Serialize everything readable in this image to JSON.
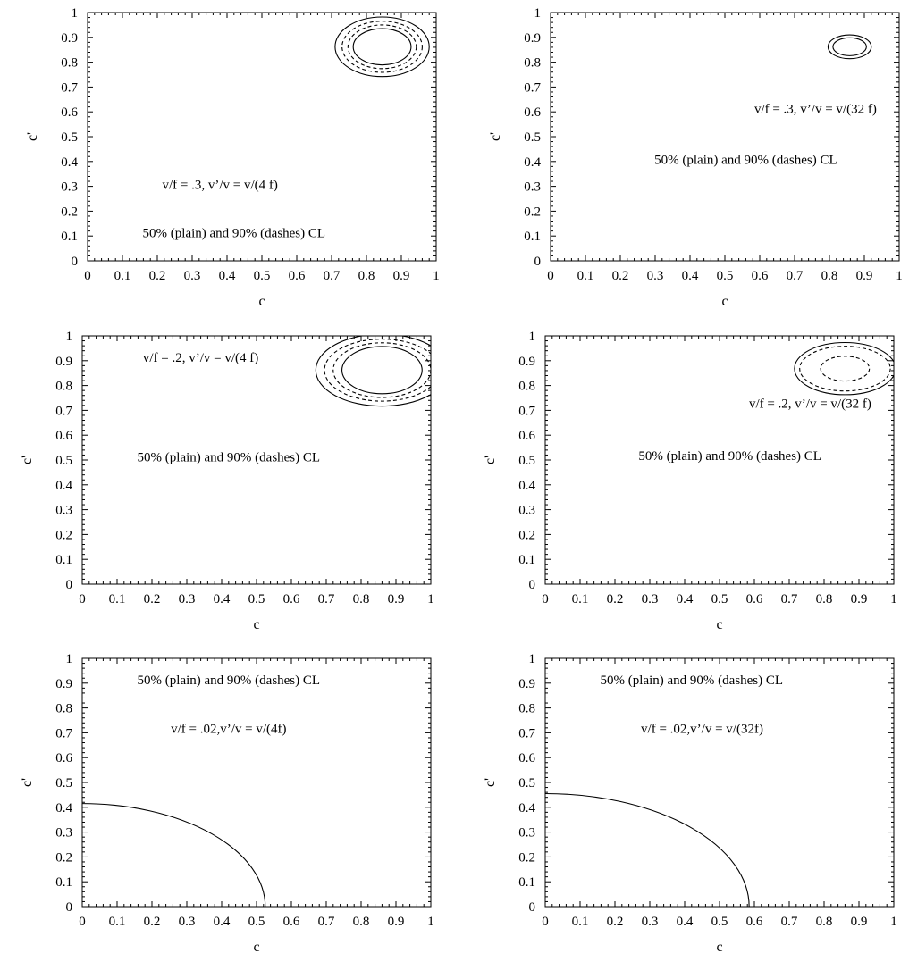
{
  "chart_data": [
    {
      "type": "line",
      "xlabel": "c",
      "ylabel": "c'",
      "xlim": [
        0,
        1
      ],
      "ylim": [
        0,
        1
      ],
      "xticks": [
        "0",
        "0.1",
        "0.2",
        "0.3",
        "0.4",
        "0.5",
        "0.6",
        "0.7",
        "0.8",
        "0.9",
        "1"
      ],
      "yticks": [
        "0",
        "0.1",
        "0.2",
        "0.3",
        "0.4",
        "0.5",
        "0.6",
        "0.7",
        "0.8",
        "0.9",
        "1"
      ],
      "annotations": [
        {
          "text": "v/f = .3, v’/v = v/(4 f)",
          "x": 0.38,
          "y": 0.29
        },
        {
          "text": "50% (plain) and 90% (dashes) CL",
          "x": 0.42,
          "y": 0.095
        }
      ],
      "series": [
        {
          "style": "solid",
          "shape": "ellipse",
          "center": [
            0.845,
            0.862
          ],
          "radii": [
            0.135,
            0.12
          ]
        },
        {
          "style": "dashed",
          "shape": "ellipse",
          "center": [
            0.845,
            0.862
          ],
          "radii": [
            0.115,
            0.103
          ]
        },
        {
          "style": "dashed",
          "shape": "ellipse",
          "center": [
            0.845,
            0.862
          ],
          "radii": [
            0.098,
            0.088
          ]
        },
        {
          "style": "solid",
          "shape": "ellipse",
          "center": [
            0.845,
            0.862
          ],
          "radii": [
            0.083,
            0.073
          ]
        }
      ]
    },
    {
      "type": "line",
      "xlabel": "c",
      "ylabel": "c'",
      "xlim": [
        0,
        1
      ],
      "ylim": [
        0,
        1
      ],
      "xticks": [
        "0",
        "0.1",
        "0.2",
        "0.3",
        "0.4",
        "0.5",
        "0.6",
        "0.7",
        "0.8",
        "0.9",
        "1"
      ],
      "yticks": [
        "0",
        "0.1",
        "0.2",
        "0.3",
        "0.4",
        "0.5",
        "0.6",
        "0.7",
        "0.8",
        "0.9",
        "1"
      ],
      "annotations": [
        {
          "text": "v/f = .3, v’/v = v/(32 f)",
          "x": 0.76,
          "y": 0.595
        },
        {
          "text": "50% (plain) and 90% (dashes) CL",
          "x": 0.56,
          "y": 0.39
        }
      ],
      "series": [
        {
          "style": "solid",
          "shape": "ellipse",
          "center": [
            0.858,
            0.862
          ],
          "radii": [
            0.062,
            0.048
          ]
        },
        {
          "style": "solid",
          "shape": "ellipse",
          "center": [
            0.858,
            0.862
          ],
          "radii": [
            0.048,
            0.036
          ]
        }
      ]
    },
    {
      "type": "line",
      "xlabel": "c",
      "ylabel": "c'",
      "xlim": [
        0,
        1
      ],
      "ylim": [
        0,
        1
      ],
      "xticks": [
        "0",
        "0.1",
        "0.2",
        "0.3",
        "0.4",
        "0.5",
        "0.6",
        "0.7",
        "0.8",
        "0.9",
        "1"
      ],
      "yticks": [
        "0",
        "0.1",
        "0.2",
        "0.3",
        "0.4",
        "0.5",
        "0.6",
        "0.7",
        "0.8",
        "0.9",
        "1"
      ],
      "annotations": [
        {
          "text": "v/f = .2, v’/v = v/(4 f)",
          "x": 0.34,
          "y": 0.895
        },
        {
          "text": "50% (plain) and 90% (dashes) CL",
          "x": 0.42,
          "y": 0.495
        }
      ],
      "series": [
        {
          "style": "solid",
          "shape": "ellipse",
          "center": [
            0.86,
            0.862
          ],
          "radii": [
            0.19,
            0.145
          ]
        },
        {
          "style": "dashed",
          "shape": "ellipse",
          "center": [
            0.86,
            0.862
          ],
          "radii": [
            0.165,
            0.125
          ]
        },
        {
          "style": "dashed",
          "shape": "ellipse",
          "center": [
            0.86,
            0.862
          ],
          "radii": [
            0.14,
            0.11
          ]
        },
        {
          "style": "solid",
          "shape": "ellipse",
          "center": [
            0.86,
            0.862
          ],
          "radii": [
            0.115,
            0.095
          ]
        }
      ]
    },
    {
      "type": "line",
      "xlabel": "c",
      "ylabel": "c'",
      "xlim": [
        0,
        1
      ],
      "ylim": [
        0,
        1
      ],
      "xticks": [
        "0",
        "0.1",
        "0.2",
        "0.3",
        "0.4",
        "0.5",
        "0.6",
        "0.7",
        "0.8",
        "0.9",
        "1"
      ],
      "yticks": [
        "0",
        "0.1",
        "0.2",
        "0.3",
        "0.4",
        "0.5",
        "0.6",
        "0.7",
        "0.8",
        "0.9",
        "1"
      ],
      "annotations": [
        {
          "text": "v/f = .2, v’/v = v/(32 f)",
          "x": 0.76,
          "y": 0.71
        },
        {
          "text": "50% (plain) and 90% (dashes) CL",
          "x": 0.53,
          "y": 0.5
        }
      ],
      "series": [
        {
          "style": "solid",
          "shape": "ellipse",
          "center": [
            0.86,
            0.868
          ],
          "radii": [
            0.145,
            0.105
          ]
        },
        {
          "style": "dashed",
          "shape": "ellipse",
          "center": [
            0.86,
            0.868
          ],
          "radii": [
            0.13,
            0.09
          ]
        },
        {
          "style": "dashed",
          "shape": "ellipse",
          "center": [
            0.86,
            0.868
          ],
          "radii": [
            0.07,
            0.05
          ]
        }
      ]
    },
    {
      "type": "line",
      "xlabel": "c",
      "ylabel": "c'",
      "xlim": [
        0,
        1
      ],
      "ylim": [
        0,
        1
      ],
      "xticks": [
        "0",
        "0.1",
        "0.2",
        "0.3",
        "0.4",
        "0.5",
        "0.6",
        "0.7",
        "0.8",
        "0.9",
        "1"
      ],
      "yticks": [
        "0",
        "0.1",
        "0.2",
        "0.3",
        "0.4",
        "0.5",
        "0.6",
        "0.7",
        "0.8",
        "0.9",
        "1"
      ],
      "annotations": [
        {
          "text": "50% (plain) and 90% (dashes) CL",
          "x": 0.42,
          "y": 0.895
        },
        {
          "text": "v/f = .02,v’/v = v/(4f)",
          "x": 0.42,
          "y": 0.7
        }
      ],
      "series": [
        {
          "style": "solid",
          "shape": "quarter-ellipse",
          "center": [
            0,
            0
          ],
          "radii": [
            0.525,
            0.415
          ]
        }
      ]
    },
    {
      "type": "line",
      "xlabel": "c",
      "ylabel": "c'",
      "xlim": [
        0,
        1
      ],
      "ylim": [
        0,
        1
      ],
      "xticks": [
        "0",
        "0.1",
        "0.2",
        "0.3",
        "0.4",
        "0.5",
        "0.6",
        "0.7",
        "0.8",
        "0.9",
        "1"
      ],
      "yticks": [
        "0",
        "0.1",
        "0.2",
        "0.3",
        "0.4",
        "0.5",
        "0.6",
        "0.7",
        "0.8",
        "0.9",
        "1"
      ],
      "annotations": [
        {
          "text": "50% (plain) and 90% (dashes) CL",
          "x": 0.42,
          "y": 0.895
        },
        {
          "text": "v/f = .02,v’/v = v/(32f)",
          "x": 0.45,
          "y": 0.7
        }
      ],
      "series": [
        {
          "style": "solid",
          "shape": "quarter-ellipse",
          "center": [
            0,
            0
          ],
          "radii": [
            0.585,
            0.455
          ]
        }
      ]
    }
  ]
}
